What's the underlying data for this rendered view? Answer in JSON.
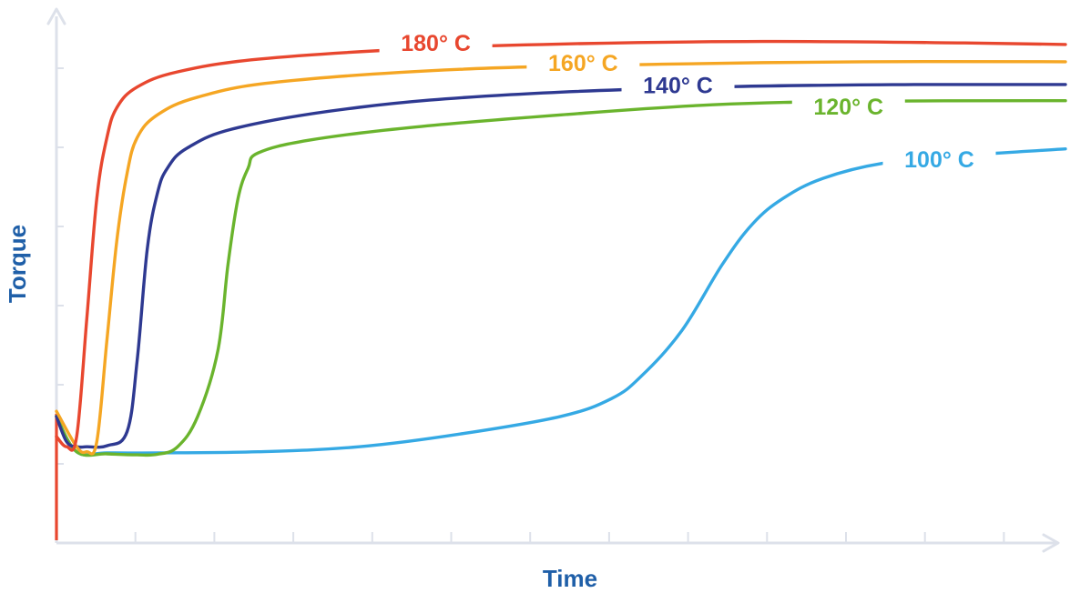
{
  "chart_data": {
    "type": "line",
    "title": "",
    "xlabel": "Time",
    "ylabel": "Torque",
    "xlim": [
      0,
      100
    ],
    "ylim": [
      0,
      100
    ],
    "x_ticks": 13,
    "y_ticks": 6,
    "grid": false,
    "legend": "inline labels",
    "series": [
      {
        "name": "180° C",
        "color": "#e8472f",
        "points": [
          [
            0,
            21
          ],
          [
            1,
            19
          ],
          [
            2,
            21
          ],
          [
            3,
            44
          ],
          [
            4,
            68
          ],
          [
            5,
            80
          ],
          [
            6,
            86
          ],
          [
            8,
            90
          ],
          [
            12,
            93
          ],
          [
            20,
            95.5
          ],
          [
            35,
            97.5
          ],
          [
            50,
            98.5
          ],
          [
            70,
            99
          ],
          [
            90,
            98.7
          ],
          [
            100,
            98.4
          ]
        ]
      },
      {
        "name": "160° C",
        "color": "#f5a623",
        "points": [
          [
            0,
            26
          ],
          [
            2,
            19
          ],
          [
            3,
            18
          ],
          [
            4,
            20
          ],
          [
            5,
            40
          ],
          [
            6,
            60
          ],
          [
            7,
            73
          ],
          [
            8,
            80
          ],
          [
            10,
            84.5
          ],
          [
            14,
            88
          ],
          [
            22,
            91
          ],
          [
            40,
            93.5
          ],
          [
            60,
            94.5
          ],
          [
            80,
            95
          ],
          [
            100,
            95
          ]
        ]
      },
      {
        "name": "140° C",
        "color": "#2e3991",
        "points": [
          [
            0,
            25
          ],
          [
            1,
            20
          ],
          [
            2,
            19
          ],
          [
            3,
            19
          ],
          [
            5,
            19.2
          ],
          [
            7,
            22
          ],
          [
            8,
            36
          ],
          [
            9,
            58
          ],
          [
            10,
            69
          ],
          [
            11,
            74
          ],
          [
            13,
            78
          ],
          [
            18,
            82
          ],
          [
            30,
            86
          ],
          [
            45,
            88.5
          ],
          [
            65,
            90
          ],
          [
            85,
            90.5
          ],
          [
            100,
            90.5
          ]
        ]
      },
      {
        "name": "120° C",
        "color": "#6ab42d",
        "points": [
          [
            0,
            25
          ],
          [
            2,
            18
          ],
          [
            5,
            17.6
          ],
          [
            8,
            17.4
          ],
          [
            10,
            17.5
          ],
          [
            12,
            19
          ],
          [
            14,
            25
          ],
          [
            16,
            38
          ],
          [
            17,
            55
          ],
          [
            18,
            68
          ],
          [
            19,
            74
          ],
          [
            20,
            77
          ],
          [
            25,
            79.5
          ],
          [
            35,
            82
          ],
          [
            50,
            84.5
          ],
          [
            65,
            86.5
          ],
          [
            80,
            87.2
          ],
          [
            100,
            87.3
          ]
        ]
      },
      {
        "name": "100° C",
        "color": "#35a9e4",
        "points": [
          [
            0,
            25
          ],
          [
            2,
            18
          ],
          [
            5,
            17.8
          ],
          [
            10,
            17.8
          ],
          [
            20,
            18
          ],
          [
            30,
            19
          ],
          [
            40,
            21.5
          ],
          [
            50,
            25
          ],
          [
            55,
            28.5
          ],
          [
            58,
            33
          ],
          [
            62,
            42
          ],
          [
            66,
            55
          ],
          [
            69,
            63
          ],
          [
            72,
            68
          ],
          [
            76,
            72
          ],
          [
            82,
            75
          ],
          [
            90,
            76.5
          ],
          [
            100,
            77.8
          ]
        ]
      }
    ],
    "labels": [
      {
        "text": "180° C",
        "series": "180° C",
        "x": 37.6,
        "y": 98.7
      },
      {
        "text": "160° C",
        "series": "160° C",
        "x": 52.2,
        "y": 94.8
      },
      {
        "text": "140° C",
        "series": "140° C",
        "x": 61.6,
        "y": 90.4
      },
      {
        "text": "120° C",
        "series": "120° C",
        "x": 78.5,
        "y": 86.2
      },
      {
        "text": "100° C",
        "series": "100° C",
        "x": 87.5,
        "y": 75.8
      }
    ],
    "axis_color": "#dde1ea"
  }
}
